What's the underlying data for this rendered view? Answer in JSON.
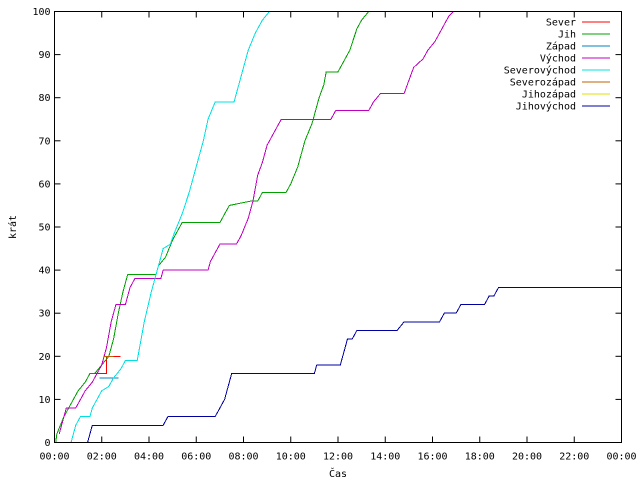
{
  "chart_data": {
    "type": "line",
    "title": "",
    "xlabel": "Čas",
    "ylabel": "krát",
    "xlim": [
      0,
      24
    ],
    "ylim": [
      0,
      100
    ],
    "x_unit": "hours",
    "x_ticks": [
      0,
      2,
      4,
      6,
      8,
      10,
      12,
      14,
      16,
      18,
      20,
      22,
      24
    ],
    "x_tick_labels": [
      "00:00",
      "02:00",
      "04:00",
      "06:00",
      "08:00",
      "10:00",
      "12:00",
      "14:00",
      "16:00",
      "18:00",
      "20:00",
      "22:00",
      "00:00"
    ],
    "y_ticks": [
      0,
      10,
      20,
      30,
      40,
      50,
      60,
      70,
      80,
      90,
      100
    ],
    "y_tick_labels": [
      "0",
      "10",
      "20",
      "30",
      "40",
      "50",
      "60",
      "70",
      "80",
      "90",
      "100"
    ],
    "grid": false,
    "legend_position": "top-right",
    "series": [
      {
        "name": "Sever",
        "color": "#ff0000",
        "points": [
          [
            1.5,
            16
          ],
          [
            2.2,
            16
          ],
          [
            2.2,
            20
          ],
          [
            2.8,
            20
          ]
        ]
      },
      {
        "name": "Jih",
        "color": "#00a000",
        "points": [
          [
            0.05,
            0
          ],
          [
            0.1,
            2
          ],
          [
            0.25,
            4
          ],
          [
            0.4,
            6
          ],
          [
            0.6,
            8
          ],
          [
            0.8,
            10
          ],
          [
            1.0,
            12
          ],
          [
            1.3,
            14
          ],
          [
            1.5,
            16
          ],
          [
            1.7,
            16
          ],
          [
            2.0,
            18
          ],
          [
            2.3,
            20
          ],
          [
            2.5,
            24
          ],
          [
            2.7,
            30
          ],
          [
            2.9,
            35
          ],
          [
            3.0,
            37
          ],
          [
            3.1,
            39
          ],
          [
            4.3,
            39
          ],
          [
            4.4,
            41
          ],
          [
            4.7,
            43
          ],
          [
            5.0,
            47
          ],
          [
            5.2,
            49
          ],
          [
            5.4,
            51
          ],
          [
            7.0,
            51
          ],
          [
            7.2,
            53
          ],
          [
            7.4,
            55
          ],
          [
            8.3,
            56
          ],
          [
            8.6,
            56
          ],
          [
            8.8,
            58
          ],
          [
            9.8,
            58
          ],
          [
            10.0,
            60
          ],
          [
            10.3,
            64
          ],
          [
            10.6,
            70
          ],
          [
            10.9,
            74
          ],
          [
            11.1,
            78
          ],
          [
            11.2,
            80
          ],
          [
            11.4,
            83
          ],
          [
            11.5,
            86
          ],
          [
            12.0,
            86
          ],
          [
            12.2,
            88
          ],
          [
            12.5,
            91
          ],
          [
            12.8,
            96
          ],
          [
            13.0,
            98
          ],
          [
            13.3,
            100
          ]
        ]
      },
      {
        "name": "Západ",
        "color": "#0080c0",
        "points": [
          [
            1.9,
            15
          ],
          [
            2.7,
            15
          ]
        ]
      },
      {
        "name": "Východ",
        "color": "#c000c0",
        "points": [
          [
            0.2,
            2
          ],
          [
            0.3,
            4
          ],
          [
            0.4,
            6
          ],
          [
            0.5,
            8
          ],
          [
            0.9,
            8
          ],
          [
            1.1,
            10
          ],
          [
            1.3,
            12
          ],
          [
            1.6,
            14
          ],
          [
            1.8,
            16
          ],
          [
            2.0,
            18
          ],
          [
            2.2,
            22
          ],
          [
            2.4,
            28
          ],
          [
            2.6,
            32
          ],
          [
            3.0,
            32
          ],
          [
            3.1,
            34
          ],
          [
            3.2,
            36
          ],
          [
            3.4,
            38
          ],
          [
            4.5,
            38
          ],
          [
            4.6,
            40
          ],
          [
            6.5,
            40
          ],
          [
            6.6,
            42
          ],
          [
            6.8,
            44
          ],
          [
            7.0,
            46
          ],
          [
            7.7,
            46
          ],
          [
            7.9,
            48
          ],
          [
            8.2,
            52
          ],
          [
            8.4,
            56
          ],
          [
            8.6,
            62
          ],
          [
            8.8,
            65
          ],
          [
            9.0,
            69
          ],
          [
            9.2,
            71
          ],
          [
            9.4,
            73
          ],
          [
            9.6,
            75
          ],
          [
            11.7,
            75
          ],
          [
            11.9,
            77
          ],
          [
            13.3,
            77
          ],
          [
            13.5,
            79
          ],
          [
            13.8,
            81
          ],
          [
            14.8,
            81
          ],
          [
            15.0,
            84
          ],
          [
            15.2,
            87
          ],
          [
            15.6,
            89
          ],
          [
            15.8,
            91
          ],
          [
            16.1,
            93
          ],
          [
            16.3,
            95
          ],
          [
            16.5,
            97
          ],
          [
            16.7,
            99
          ],
          [
            16.9,
            100
          ]
        ]
      },
      {
        "name": "Severovýchod",
        "color": "#00e0e0",
        "points": [
          [
            0.7,
            0
          ],
          [
            0.8,
            2
          ],
          [
            0.9,
            4
          ],
          [
            1.1,
            6
          ],
          [
            1.5,
            6
          ],
          [
            1.6,
            8
          ],
          [
            1.8,
            10
          ],
          [
            2.0,
            12
          ],
          [
            2.3,
            13
          ],
          [
            2.5,
            15
          ],
          [
            2.8,
            17
          ],
          [
            3.0,
            19
          ],
          [
            3.5,
            19
          ],
          [
            3.8,
            28
          ],
          [
            4.1,
            35
          ],
          [
            4.4,
            41
          ],
          [
            4.6,
            45
          ],
          [
            4.9,
            46
          ],
          [
            5.1,
            49
          ],
          [
            5.4,
            53
          ],
          [
            5.7,
            58
          ],
          [
            5.9,
            62
          ],
          [
            6.1,
            66
          ],
          [
            6.3,
            70
          ],
          [
            6.5,
            75
          ],
          [
            6.8,
            79
          ],
          [
            7.6,
            79
          ],
          [
            7.8,
            83
          ],
          [
            8.0,
            87
          ],
          [
            8.2,
            91
          ],
          [
            8.5,
            95
          ],
          [
            8.8,
            98
          ],
          [
            9.1,
            100
          ]
        ]
      },
      {
        "name": "Severozápad",
        "color": "#c06000",
        "points": [
          [
            2.1,
            20
          ],
          [
            2.5,
            20
          ]
        ]
      },
      {
        "name": "Jihozápad",
        "color": "#e0e000",
        "points": []
      },
      {
        "name": "Jihovýchod",
        "color": "#0000a0",
        "points": [
          [
            1.4,
            0
          ],
          [
            1.5,
            2
          ],
          [
            1.6,
            4
          ],
          [
            4.6,
            4
          ],
          [
            4.8,
            6
          ],
          [
            6.8,
            6
          ],
          [
            7.0,
            8
          ],
          [
            7.2,
            10
          ],
          [
            7.3,
            12
          ],
          [
            7.4,
            14
          ],
          [
            7.5,
            16
          ],
          [
            11.0,
            16
          ],
          [
            11.1,
            18
          ],
          [
            12.1,
            18
          ],
          [
            12.2,
            20
          ],
          [
            12.3,
            22
          ],
          [
            12.4,
            24
          ],
          [
            12.6,
            24
          ],
          [
            12.8,
            26
          ],
          [
            14.5,
            26
          ],
          [
            14.8,
            28
          ],
          [
            16.3,
            28
          ],
          [
            16.5,
            30
          ],
          [
            17.0,
            30
          ],
          [
            17.2,
            32
          ],
          [
            18.2,
            32
          ],
          [
            18.4,
            34
          ],
          [
            18.6,
            34
          ],
          [
            18.8,
            36
          ],
          [
            24.0,
            36
          ]
        ]
      }
    ]
  }
}
